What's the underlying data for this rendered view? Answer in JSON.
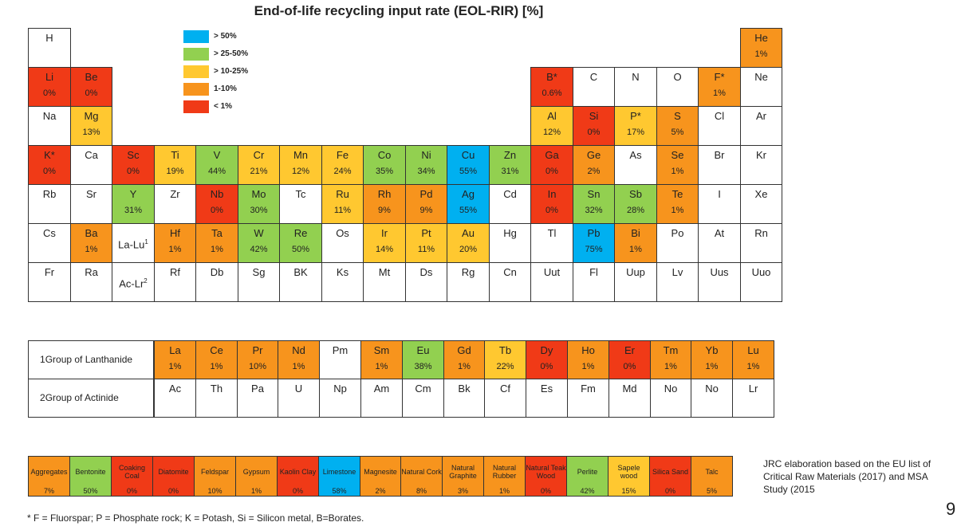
{
  "title": "End-of-life recycling input rate (EOL-RIR) [%]",
  "colors": {
    "blue": "#00B0F0",
    "green": "#92D050",
    "yellow": "#FFC830",
    "orange": "#F7941D",
    "red": "#F03A17",
    "white": "#FFFFFF"
  },
  "legend": [
    {
      "label": "> 50%",
      "color": "blue"
    },
    {
      "label": "> 25-50%",
      "color": "green"
    },
    {
      "label": "> 10-25%",
      "color": "yellow"
    },
    {
      "label": "1-10%",
      "color": "orange"
    },
    {
      "label": "< 1%",
      "color": "red"
    }
  ],
  "rows": [
    [
      [
        "H",
        "",
        ""
      ],
      null,
      null,
      null,
      null,
      null,
      null,
      null,
      null,
      null,
      null,
      null,
      null,
      null,
      null,
      null,
      null,
      [
        "He",
        "1%",
        "orange"
      ]
    ],
    [
      [
        "Li",
        "0%",
        "red"
      ],
      [
        "Be",
        "0%",
        "red"
      ],
      null,
      null,
      null,
      null,
      null,
      null,
      null,
      null,
      null,
      null,
      [
        "B*",
        "0.6%",
        "red"
      ],
      [
        "C",
        "",
        ""
      ],
      [
        "N",
        "",
        ""
      ],
      [
        "O",
        "",
        ""
      ],
      [
        "F*",
        "1%",
        "orange"
      ],
      [
        "Ne",
        "",
        ""
      ]
    ],
    [
      [
        "Na",
        "",
        ""
      ],
      [
        "Mg",
        "13%",
        "yellow"
      ],
      null,
      null,
      null,
      null,
      null,
      null,
      null,
      null,
      null,
      null,
      [
        "Al",
        "12%",
        "yellow"
      ],
      [
        "Si",
        "0%",
        "red"
      ],
      [
        "P*",
        "17%",
        "yellow"
      ],
      [
        "S",
        "5%",
        "orange"
      ],
      [
        "Cl",
        "",
        ""
      ],
      [
        "Ar",
        "",
        ""
      ]
    ],
    [
      [
        "K*",
        "0%",
        "red"
      ],
      [
        "Ca",
        "",
        ""
      ],
      [
        "Sc",
        "0%",
        "red"
      ],
      [
        "Ti",
        "19%",
        "yellow"
      ],
      [
        "V",
        "44%",
        "green"
      ],
      [
        "Cr",
        "21%",
        "yellow"
      ],
      [
        "Mn",
        "12%",
        "yellow"
      ],
      [
        "Fe",
        "24%",
        "yellow"
      ],
      [
        "Co",
        "35%",
        "green"
      ],
      [
        "Ni",
        "34%",
        "green"
      ],
      [
        "Cu",
        "55%",
        "blue"
      ],
      [
        "Zn",
        "31%",
        "green"
      ],
      [
        "Ga",
        "0%",
        "red"
      ],
      [
        "Ge",
        "2%",
        "orange"
      ],
      [
        "As",
        "",
        ""
      ],
      [
        "Se",
        "1%",
        "orange"
      ],
      [
        "Br",
        "",
        ""
      ],
      [
        "Kr",
        "",
        ""
      ]
    ],
    [
      [
        "Rb",
        "",
        ""
      ],
      [
        "Sr",
        "",
        ""
      ],
      [
        "Y",
        "31%",
        "green"
      ],
      [
        "Zr",
        "",
        ""
      ],
      [
        "Nb",
        "0%",
        "red"
      ],
      [
        "Mo",
        "30%",
        "green"
      ],
      [
        "Tc",
        "",
        ""
      ],
      [
        "Ru",
        "11%",
        "yellow"
      ],
      [
        "Rh",
        "9%",
        "orange"
      ],
      [
        "Pd",
        "9%",
        "orange"
      ],
      [
        "Ag",
        "55%",
        "blue"
      ],
      [
        "Cd",
        "",
        ""
      ],
      [
        "In",
        "0%",
        "red"
      ],
      [
        "Sn",
        "32%",
        "green"
      ],
      [
        "Sb",
        "28%",
        "green"
      ],
      [
        "Te",
        "1%",
        "orange"
      ],
      [
        "I",
        "",
        ""
      ],
      [
        "Xe",
        "",
        ""
      ]
    ],
    [
      [
        "Cs",
        "",
        ""
      ],
      [
        "Ba",
        "1%",
        "orange"
      ],
      [
        "La-Lu",
        "",
        "",
        "1"
      ],
      [
        "Hf",
        "1%",
        "orange"
      ],
      [
        "Ta",
        "1%",
        "orange"
      ],
      [
        "W",
        "42%",
        "green"
      ],
      [
        "Re",
        "50%",
        "green"
      ],
      [
        "Os",
        "",
        ""
      ],
      [
        "Ir",
        "14%",
        "yellow"
      ],
      [
        "Pt",
        "11%",
        "yellow"
      ],
      [
        "Au",
        "20%",
        "yellow"
      ],
      [
        "Hg",
        "",
        ""
      ],
      [
        "Tl",
        "",
        ""
      ],
      [
        "Pb",
        "75%",
        "blue"
      ],
      [
        "Bi",
        "1%",
        "orange"
      ],
      [
        "Po",
        "",
        ""
      ],
      [
        "At",
        "",
        ""
      ],
      [
        "Rn",
        "",
        ""
      ]
    ],
    [
      [
        "Fr",
        "",
        ""
      ],
      [
        "Ra",
        "",
        ""
      ],
      [
        "Ac-Lr",
        "",
        "",
        "2"
      ],
      [
        "Rf",
        "",
        ""
      ],
      [
        "Db",
        "",
        ""
      ],
      [
        "Sg",
        "",
        ""
      ],
      [
        "BK",
        "",
        ""
      ],
      [
        "Ks",
        "",
        ""
      ],
      [
        "Mt",
        "",
        ""
      ],
      [
        "Ds",
        "",
        ""
      ],
      [
        "Rg",
        "",
        ""
      ],
      [
        "Cn",
        "",
        ""
      ],
      [
        "Uut",
        "",
        ""
      ],
      [
        "Fl",
        "",
        ""
      ],
      [
        "Uup",
        "",
        ""
      ],
      [
        "Lv",
        "",
        ""
      ],
      [
        "Uus",
        "",
        ""
      ],
      [
        "Uuo",
        "",
        ""
      ]
    ]
  ],
  "groups": [
    {
      "label": "Group of Lanthanide",
      "sup": "1",
      "elements": [
        [
          "La",
          "1%",
          "orange"
        ],
        [
          "Ce",
          "1%",
          "orange"
        ],
        [
          "Pr",
          "10%",
          "orange"
        ],
        [
          "Nd",
          "1%",
          "orange"
        ],
        [
          "Pm",
          "",
          ""
        ],
        [
          "Sm",
          "1%",
          "orange"
        ],
        [
          "Eu",
          "38%",
          "green"
        ],
        [
          "Gd",
          "1%",
          "orange"
        ],
        [
          "Tb",
          "22%",
          "yellow"
        ],
        [
          "Dy",
          "0%",
          "red"
        ],
        [
          "Ho",
          "1%",
          "orange"
        ],
        [
          "Er",
          "0%",
          "red"
        ],
        [
          "Tm",
          "1%",
          "orange"
        ],
        [
          "Yb",
          "1%",
          "orange"
        ],
        [
          "Lu",
          "1%",
          "orange"
        ]
      ]
    },
    {
      "label": "Group of Actinide",
      "sup": "2",
      "elements": [
        [
          "Ac",
          "",
          ""
        ],
        [
          "Th",
          "",
          ""
        ],
        [
          "Pa",
          "",
          ""
        ],
        [
          "U",
          "",
          ""
        ],
        [
          "Np",
          "",
          ""
        ],
        [
          "Am",
          "",
          ""
        ],
        [
          "Cm",
          "",
          ""
        ],
        [
          "Bk",
          "",
          ""
        ],
        [
          "Cf",
          "",
          ""
        ],
        [
          "Es",
          "",
          ""
        ],
        [
          "Fm",
          "",
          ""
        ],
        [
          "Md",
          "",
          ""
        ],
        [
          "No",
          "",
          ""
        ],
        [
          "No",
          "",
          ""
        ],
        [
          "Lr",
          "",
          ""
        ]
      ]
    }
  ],
  "materials": [
    [
      "Aggregates",
      "7%",
      "orange"
    ],
    [
      "Bentonite",
      "50%",
      "green"
    ],
    [
      "Coaking Coal",
      "0%",
      "red"
    ],
    [
      "Diatomite",
      "0%",
      "red"
    ],
    [
      "Feldspar",
      "10%",
      "orange"
    ],
    [
      "Gypsum",
      "1%",
      "orange"
    ],
    [
      "Kaolin Clay",
      "0%",
      "red"
    ],
    [
      "Limestone",
      "58%",
      "blue"
    ],
    [
      "Magnesite",
      "2%",
      "orange"
    ],
    [
      "Natural Cork",
      "8%",
      "orange"
    ],
    [
      "Natural Graphite",
      "3%",
      "orange"
    ],
    [
      "Natural Rubber",
      "1%",
      "orange"
    ],
    [
      "Natural Teak Wood",
      "0%",
      "red"
    ],
    [
      "Perlite",
      "42%",
      "green"
    ],
    [
      "Sapele wood",
      "15%",
      "yellow"
    ],
    [
      "Silica Sand",
      "0%",
      "red"
    ],
    [
      "Talc",
      "5%",
      "orange"
    ]
  ],
  "note": "JRC elaboration based on the EU list of Critical Raw Materials (2017) and MSA Study (2015",
  "page_number": "9",
  "footnote": "* F = Fluorspar;  P = Phosphate  rock; K = Potash,  Si = Silicon metal,   B=Borates."
}
